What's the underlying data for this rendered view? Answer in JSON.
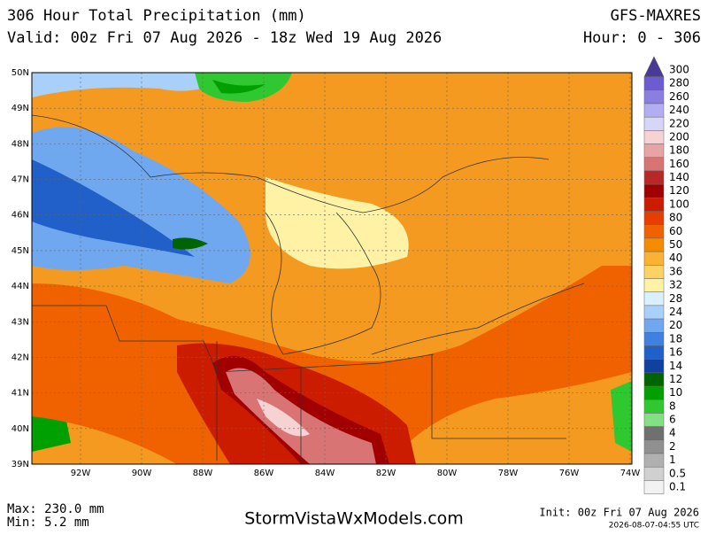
{
  "header": {
    "title": "306 Hour Total Precipitation (mm)",
    "model": "GFS-MAXRES",
    "valid": "Valid: 00z Fri 07 Aug 2026 - 18z Wed 19 Aug 2026",
    "hour": "Hour: 0 - 306"
  },
  "map": {
    "lat_labels": [
      "50N",
      "49N",
      "48N",
      "47N",
      "46N",
      "45N",
      "44N",
      "43N",
      "42N",
      "41N",
      "40N",
      "39N"
    ],
    "lon_labels": [
      "92W",
      "90W",
      "88W",
      "86W",
      "84W",
      "82W",
      "80W",
      "78W",
      "76W",
      "74W"
    ]
  },
  "legend": {
    "levels": [
      {
        "label": "300",
        "color": "#4a3a98"
      },
      {
        "label": "280",
        "color": "#6c5cd0"
      },
      {
        "label": "260",
        "color": "#8a7ee0"
      },
      {
        "label": "240",
        "color": "#b3aef0"
      },
      {
        "label": "220",
        "color": "#d8d6f8"
      },
      {
        "label": "200",
        "color": "#f6d2d2"
      },
      {
        "label": "180",
        "color": "#e8a4a4"
      },
      {
        "label": "160",
        "color": "#d87474"
      },
      {
        "label": "140",
        "color": "#b82828"
      },
      {
        "label": "120",
        "color": "#a00000"
      },
      {
        "label": "100",
        "color": "#cc1c00"
      },
      {
        "label": "80",
        "color": "#e63e00"
      },
      {
        "label": "60",
        "color": "#f06200"
      },
      {
        "label": "50",
        "color": "#f58c00"
      },
      {
        "label": "40",
        "color": "#fab232"
      },
      {
        "label": "36",
        "color": "#fdd262"
      },
      {
        "label": "32",
        "color": "#fff2a4"
      },
      {
        "label": "28",
        "color": "#d8f0ff"
      },
      {
        "label": "24",
        "color": "#a8d0f8"
      },
      {
        "label": "20",
        "color": "#70a8f0"
      },
      {
        "label": "18",
        "color": "#4080e0"
      },
      {
        "label": "16",
        "color": "#2060c8"
      },
      {
        "label": "14",
        "color": "#1040a0"
      },
      {
        "label": "12",
        "color": "#006400"
      },
      {
        "label": "10",
        "color": "#00a000"
      },
      {
        "label": "8",
        "color": "#30c830"
      },
      {
        "label": "6",
        "color": "#84e084"
      },
      {
        "label": "4",
        "color": "#707070"
      },
      {
        "label": "2",
        "color": "#909090"
      },
      {
        "label": "1",
        "color": "#b0b0b0"
      },
      {
        "label": "0.5",
        "color": "#d0d0d0"
      },
      {
        "label": "0.1",
        "color": "#f2f2f2"
      }
    ]
  },
  "footer": {
    "max": "Max: 230.0 mm",
    "min": "Min: 5.2 mm",
    "site": "StormVistaWxModels.com",
    "init": "Init: 00z Fri 07 Aug 2026",
    "timestamp": "2026-08-07-04:55 UTC"
  }
}
